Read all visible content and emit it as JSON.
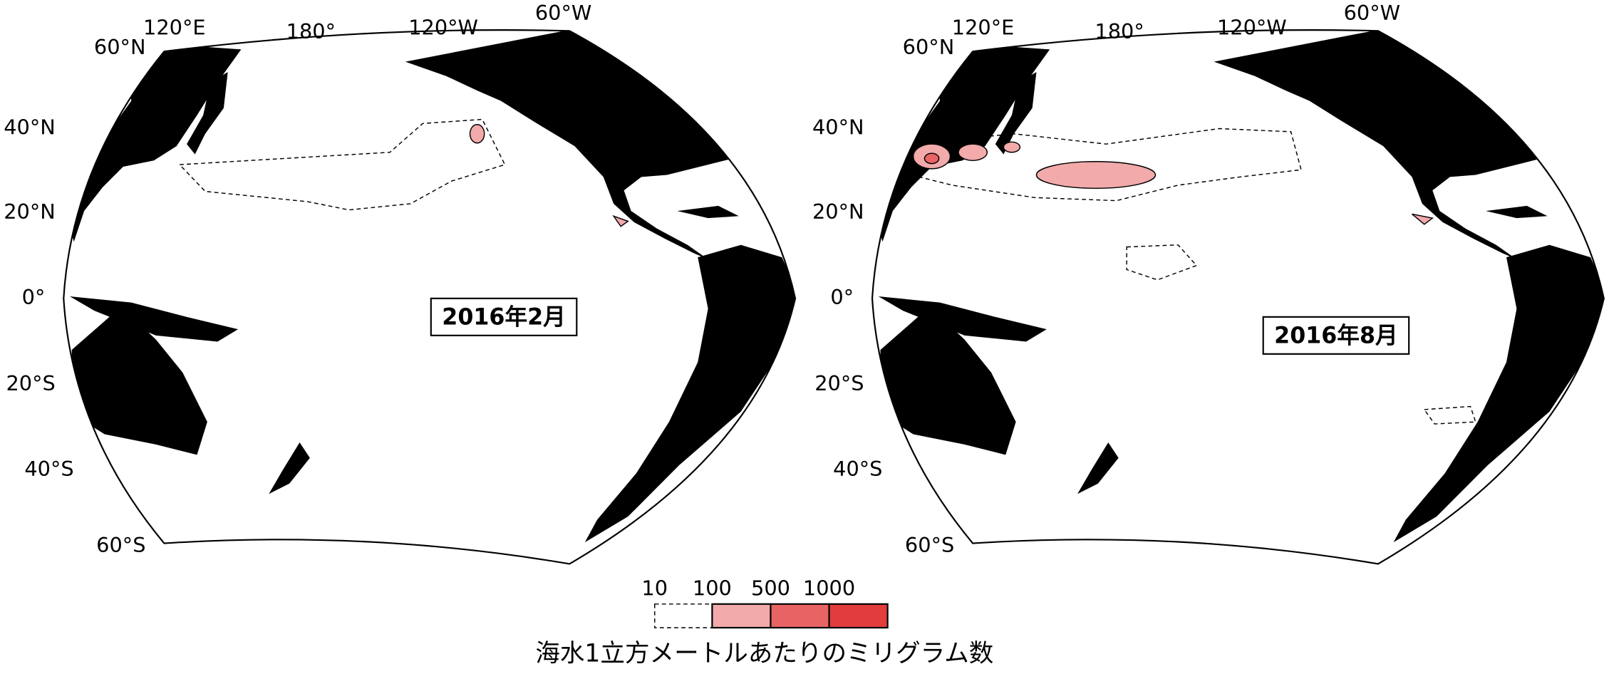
{
  "panels": [
    {
      "label": "2016年2月",
      "lon_labels": [
        "120°E",
        "180°",
        "120°W",
        "60°W"
      ],
      "lat_labels": [
        "60°N",
        "40°N",
        "20°N",
        "0°",
        "20°S",
        "40°S",
        "60°S"
      ]
    },
    {
      "label": "2016年8月",
      "lon_labels": [
        "120°E",
        "180°",
        "120°W",
        "60°W"
      ],
      "lat_labels": [
        "60°N",
        "40°N",
        "20°N",
        "0°",
        "20°S",
        "40°S",
        "60°S"
      ]
    }
  ],
  "legend": {
    "ticks": [
      10,
      100,
      500,
      1000
    ],
    "colors": [
      "#f2aaaa",
      "#e86464",
      "#e23c3c"
    ],
    "caption": "海水1立方メートルあたりのミリグラム数"
  }
}
